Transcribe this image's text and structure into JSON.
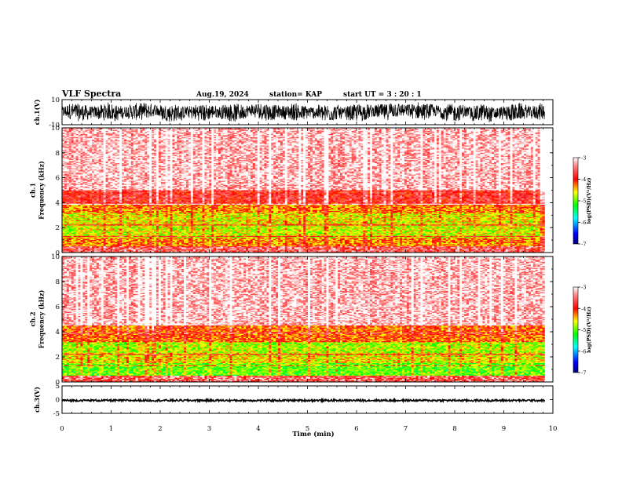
{
  "header": {
    "title": "VLF Spectra",
    "date": "Aug.19, 2024",
    "station": "station= KAP",
    "start": "start  UT =   3 : 20 : 1"
  },
  "chart_data": [
    {
      "type": "line",
      "panel": "ch1-waveform",
      "ylabel": "ch.1(V)",
      "ylim": [
        -10,
        10
      ],
      "yticks": [
        "10",
        "-10"
      ],
      "x": [
        0,
        9.83
      ],
      "note_values": "dense noisy waveform, amplitude about -7 to +7 V"
    },
    {
      "type": "heatmap",
      "panel": "ch1-spectrogram",
      "ylabel": "ch.1\nFrequency (kHz)",
      "ylim": [
        0,
        10
      ],
      "yticks": [
        "0",
        "2",
        "4",
        "6",
        "8",
        "10"
      ],
      "xlim": [
        0,
        9.83
      ],
      "colorbar": {
        "label": "log(PSD)(V²/Hz)",
        "ticks": [
          "-3",
          "-4",
          "-5",
          "-6",
          "-7"
        ],
        "range": [
          -7,
          -3
        ]
      },
      "bands": [
        {
          "f0": 0,
          "f1": 0.5,
          "level": -3.6
        },
        {
          "f0": 0.5,
          "f1": 1.2,
          "level": -4.3
        },
        {
          "f0": 1.2,
          "f1": 2.2,
          "level": -4.7
        },
        {
          "f0": 2.2,
          "f1": 3.2,
          "level": -4.6
        },
        {
          "f0": 3.2,
          "f1": 3.8,
          "level": -4.3
        },
        {
          "f0": 3.8,
          "f1": 5.0,
          "level": -3.8
        },
        {
          "f0": 5.0,
          "f1": 10,
          "level": -3.2
        }
      ]
    },
    {
      "type": "heatmap",
      "panel": "ch2-spectrogram",
      "ylabel": "ch.2\nFrequency (kHz)",
      "ylim": [
        0,
        10
      ],
      "yticks": [
        "0",
        "2",
        "4",
        "6",
        "8",
        "10"
      ],
      "xlim": [
        0,
        9.83
      ],
      "colorbar": {
        "label": "log(PSD)(V²/Hz)",
        "ticks": [
          "-3",
          "-4",
          "-5",
          "-6",
          "-7"
        ],
        "range": [
          -7,
          -3
        ]
      },
      "bands": [
        {
          "f0": 0,
          "f1": 0.5,
          "level": -3.8
        },
        {
          "f0": 0.5,
          "f1": 1.5,
          "level": -5.0
        },
        {
          "f0": 1.5,
          "f1": 2.3,
          "level": -4.6
        },
        {
          "f0": 2.3,
          "f1": 3.2,
          "level": -4.8
        },
        {
          "f0": 3.2,
          "f1": 4.5,
          "level": -4.2
        },
        {
          "f0": 4.5,
          "f1": 10,
          "level": -3.2
        }
      ]
    },
    {
      "type": "line",
      "panel": "ch3-waveform",
      "ylabel": "ch.3(V)",
      "ylim": [
        -5,
        5
      ],
      "yticks": [
        "5",
        "0",
        "-5"
      ],
      "x": [
        0,
        9.83
      ],
      "note_values": "nearly constant at about -0.3 V with small noise"
    }
  ],
  "xaxis": {
    "label": "Time  (min)",
    "ticks": [
      "0",
      "1",
      "2",
      "3",
      "4",
      "5",
      "6",
      "7",
      "8",
      "9",
      "10"
    ],
    "xlim": [
      0,
      10
    ]
  },
  "colors": {
    "colormap": [
      "#00008b",
      "#0000ff",
      "#00ffff",
      "#00ff00",
      "#ffff00",
      "#ff0000",
      "#ffffff"
    ]
  }
}
